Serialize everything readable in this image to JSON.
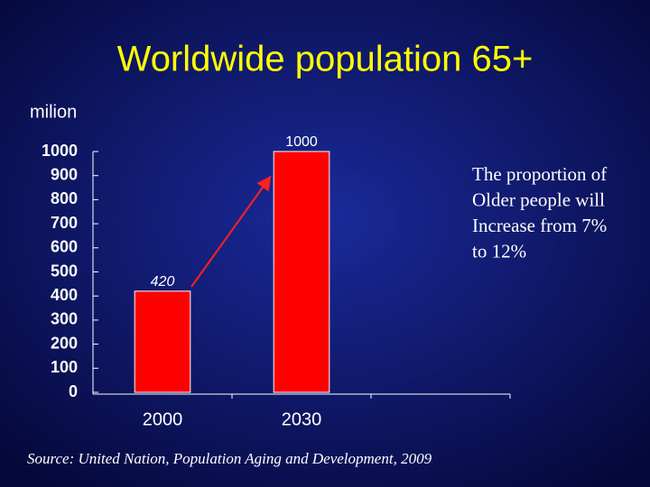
{
  "chart_data": {
    "type": "bar",
    "title": "Worldwide population 65+",
    "y_label": "milion",
    "categories": [
      "2000",
      "2030",
      null
    ],
    "values": [
      420,
      1000,
      null
    ],
    "color": "#ff0000",
    "ylim": [
      0,
      1000
    ],
    "yticks": [
      0,
      100,
      200,
      300,
      400,
      500,
      600,
      700,
      800,
      900,
      1000
    ],
    "annotation": [
      "The proportion of",
      "Older people will",
      "Increase from 7%",
      "to 12%"
    ],
    "source": "Source: United Nation, Population Aging and Development, 2009"
  }
}
